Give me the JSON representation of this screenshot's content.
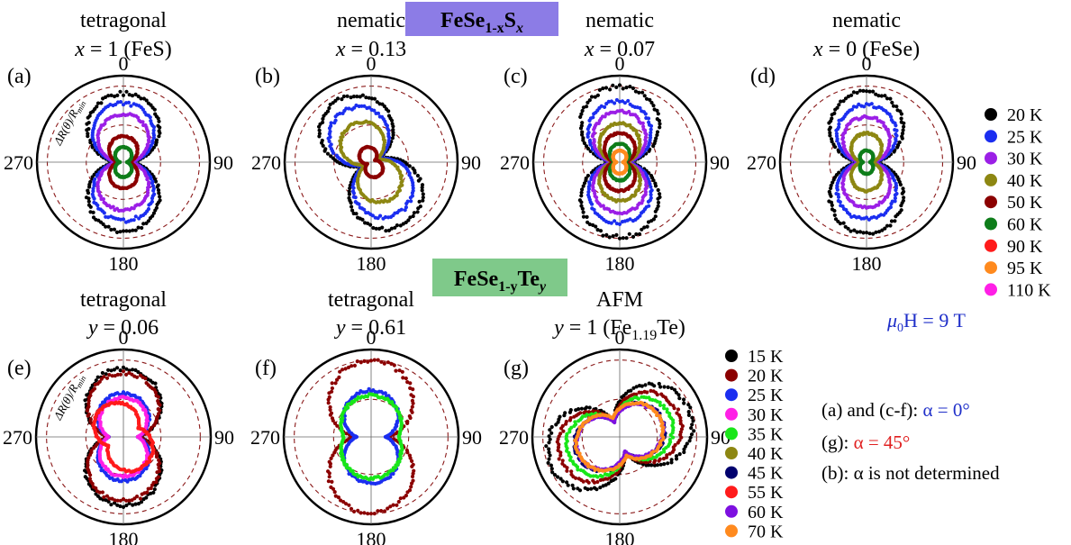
{
  "groups": [
    {
      "title": "FeSe",
      "sub": "1-x",
      "tail": "S",
      "tail_sub": "x",
      "bg": "#8c7ce6"
    },
    {
      "title": "FeSe",
      "sub": "1-y",
      "tail": "Te",
      "tail_sub": "y",
      "bg": "#7fc98a"
    }
  ],
  "angle_labels": [
    "0",
    "90",
    "180",
    "270"
  ],
  "radial_label": "ΔR(θ)/R",
  "radial_label_sub": "min",
  "field_label": {
    "mu": "μ",
    "sub": "0",
    "rest": "H = 9 T",
    "color": "#1f2fc9"
  },
  "alpha_notes": [
    {
      "prefix": "(a) and (c-f): ",
      "value": "α = 0°",
      "color": "#1f2fc9"
    },
    {
      "prefix": "(g): ",
      "value": "α = 45°",
      "color": "#e01f1f"
    },
    {
      "prefix": "(b): ",
      "value": "α  is not determined",
      "color": "#000000"
    }
  ],
  "legends": [
    {
      "name": "legend-fese-s",
      "entries": [
        {
          "label": "20 K",
          "color": "#000000"
        },
        {
          "label": "25 K",
          "color": "#1b2ef0"
        },
        {
          "label": "30 K",
          "color": "#9b1fe6"
        },
        {
          "label": "40 K",
          "color": "#8d8712"
        },
        {
          "label": "50 K",
          "color": "#8b0000"
        },
        {
          "label": "60 K",
          "color": "#0e7d1a"
        },
        {
          "label": "90 K",
          "color": "#ff1b1b"
        },
        {
          "label": "95 K",
          "color": "#ff8a1e"
        },
        {
          "label": "110 K",
          "color": "#ff1fe6"
        }
      ]
    },
    {
      "name": "legend-fese-te",
      "entries": [
        {
          "label": "15 K",
          "color": "#000000"
        },
        {
          "label": "20 K",
          "color": "#8b0000"
        },
        {
          "label": "25 K",
          "color": "#1b2ef0"
        },
        {
          "label": "30 K",
          "color": "#ff1fe6"
        },
        {
          "label": "35 K",
          "color": "#19e619"
        },
        {
          "label": "40 K",
          "color": "#8d8712"
        },
        {
          "label": "45 K",
          "color": "#00006e"
        },
        {
          "label": "55 K",
          "color": "#ff1b1b"
        },
        {
          "label": "60 K",
          "color": "#7d10e0"
        },
        {
          "label": "70 K",
          "color": "#ff8a1e"
        }
      ]
    }
  ],
  "chart_data": [
    {
      "type": "polar",
      "panel": "(a)",
      "title": "tetragonal",
      "subtitle": "x = 1 (FeS)",
      "axis": "0",
      "series": [
        {
          "temp": "20 K",
          "color": "#000000",
          "amp": 0.78,
          "k": 0.08,
          "rot": 0
        },
        {
          "temp": "25 K",
          "color": "#1b2ef0",
          "amp": 0.66,
          "k": 0.06,
          "rot": 0
        },
        {
          "temp": "30 K",
          "color": "#9b1fe6",
          "amp": 0.53,
          "k": 0.06,
          "rot": 0
        },
        {
          "temp": "50 K",
          "color": "#8b0000",
          "amp": 0.26,
          "k": 0.06,
          "rot": 0
        },
        {
          "temp": "60 K",
          "color": "#0e7d1a",
          "amp": 0.14,
          "k": 0.04,
          "rot": 0
        }
      ]
    },
    {
      "type": "polar",
      "panel": "(b)",
      "title": "nematic",
      "subtitle": "x = 0.13",
      "axis": "0",
      "series": [
        {
          "temp": "20 K",
          "color": "#000000",
          "amp": 0.8,
          "k": 0.08,
          "rot": -25
        },
        {
          "temp": "25 K",
          "color": "#1b2ef0",
          "amp": 0.65,
          "k": 0.06,
          "rot": -25
        },
        {
          "temp": "40 K",
          "color": "#8d8712",
          "amp": 0.46,
          "k": 0.05,
          "rot": -25
        },
        {
          "temp": "50 K",
          "color": "#8b0000",
          "amp": 0.14,
          "k": 0.05,
          "rot": -25
        }
      ]
    },
    {
      "type": "polar",
      "panel": "(c)",
      "title": "nematic",
      "subtitle": "x = 0.07",
      "axis": "0",
      "series": [
        {
          "temp": "20 K",
          "color": "#000000",
          "amp": 0.86,
          "k": 0.08,
          "rot": 0
        },
        {
          "temp": "25 K",
          "color": "#1b2ef0",
          "amp": 0.68,
          "k": 0.07,
          "rot": 0
        },
        {
          "temp": "30 K",
          "color": "#9b1fe6",
          "amp": 0.56,
          "k": 0.06,
          "rot": 0
        },
        {
          "temp": "40 K",
          "color": "#8d8712",
          "amp": 0.42,
          "k": 0.05,
          "rot": 0
        },
        {
          "temp": "50 K",
          "color": "#8b0000",
          "amp": 0.3,
          "k": 0.05,
          "rot": 0
        },
        {
          "temp": "60 K",
          "color": "#0e7d1a",
          "amp": 0.18,
          "k": 0.04,
          "rot": 0
        },
        {
          "temp": "95 K",
          "color": "#ff8a1e",
          "amp": 0.1,
          "k": 0.04,
          "rot": 0
        }
      ]
    },
    {
      "type": "polar",
      "panel": "(d)",
      "title": "nematic",
      "subtitle": "x = 0 (FeSe)",
      "axis": "0",
      "series": [
        {
          "temp": "20 K",
          "color": "#000000",
          "amp": 0.8,
          "k": 0.08,
          "rot": 0
        },
        {
          "temp": "25 K",
          "color": "#1b2ef0",
          "amp": 0.64,
          "k": 0.06,
          "rot": 0
        },
        {
          "temp": "30 K",
          "color": "#9b1fe6",
          "amp": 0.5,
          "k": 0.05,
          "rot": 0
        },
        {
          "temp": "40 K",
          "color": "#8d8712",
          "amp": 0.3,
          "k": 0.05,
          "rot": 0
        },
        {
          "temp": "60 K",
          "color": "#0e7d1a",
          "amp": 0.1,
          "k": 0.04,
          "rot": 0
        }
      ]
    },
    {
      "type": "polar",
      "panel": "(e)",
      "title": "tetragonal",
      "subtitle": "y = 0.06",
      "axis": "0",
      "series": [
        {
          "temp": "15 K",
          "color": "#000000",
          "amp": 0.74,
          "k": 0.2,
          "rot": 0
        },
        {
          "temp": "20 K",
          "color": "#8b0000",
          "amp": 0.68,
          "k": 0.2,
          "rot": 0
        },
        {
          "temp": "25 K",
          "color": "#1b2ef0",
          "amp": 0.4,
          "k": 0.2,
          "rot": 0
        },
        {
          "temp": "30 K",
          "color": "#ff1fe6",
          "amp": 0.34,
          "k": 0.2,
          "rot": 0
        },
        {
          "temp": "55 K",
          "color": "#ff1b1b",
          "amp": 0.26,
          "k": 0.25,
          "rot": -30
        }
      ]
    },
    {
      "type": "polar",
      "panel": "(f)",
      "title": "tetragonal",
      "subtitle": "y = 0.61",
      "axis": "0",
      "series": [
        {
          "temp": "20 K",
          "color": "#8b0000",
          "amp": 0.84,
          "k": 0.24,
          "rot": 0
        },
        {
          "temp": "25 K",
          "color": "#1b2ef0",
          "amp": 0.44,
          "k": 0.2,
          "rot": 0
        },
        {
          "temp": "35 K",
          "color": "#19e619",
          "amp": 0.24,
          "k": 0.45,
          "rot": 0
        }
      ]
    },
    {
      "type": "polar",
      "panel": "(g)",
      "title": "AFM",
      "subtitle": "y = 1 (Fe",
      "subtitle_sub": "1.19",
      "subtitle_tail": "Te)",
      "axis": "0",
      "series": [
        {
          "temp": "15 K",
          "color": "#000000",
          "amp": 0.82,
          "k": 0.22,
          "rot": 70
        },
        {
          "temp": "20 K",
          "color": "#8b0000",
          "amp": 0.66,
          "k": 0.22,
          "rot": 70
        },
        {
          "temp": "35 K",
          "color": "#19e619",
          "amp": 0.54,
          "k": 0.22,
          "rot": 70
        },
        {
          "temp": "45 K",
          "color": "#00006e",
          "amp": 0.42,
          "k": 0.22,
          "rot": 70
        },
        {
          "temp": "60 K",
          "color": "#7d10e0",
          "amp": 0.4,
          "k": 0.22,
          "rot": 70
        },
        {
          "temp": "70 K",
          "color": "#ff8a1e",
          "amp": 0.36,
          "k": 0.3,
          "rot": 70
        }
      ]
    }
  ]
}
